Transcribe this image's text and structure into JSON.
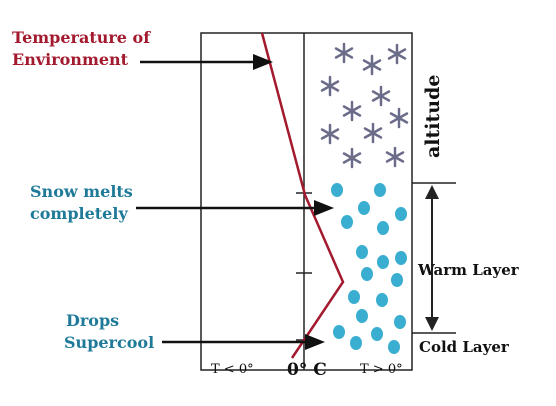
{
  "labels": {
    "temp_env_line1": "Temperature of",
    "temp_env_line2": "Environment",
    "snow_melts_line1": "Snow melts",
    "snow_melts_line2": "completely",
    "drops_line1": "Drops",
    "drops_line2": "Supercool",
    "altitude": "altitude",
    "warm_layer": "Warm Layer",
    "cold_layer": "Cold Layer",
    "t_below": "T < 0°",
    "zero_c": "0° C",
    "t_above": "T > 0°"
  },
  "colors": {
    "temperature_line": "#a31a2e",
    "snowflake": "#6b6b8a",
    "raindrop": "#3aaed0",
    "label_blue": "#1f7a99",
    "label_red": "#a31a2e"
  }
}
